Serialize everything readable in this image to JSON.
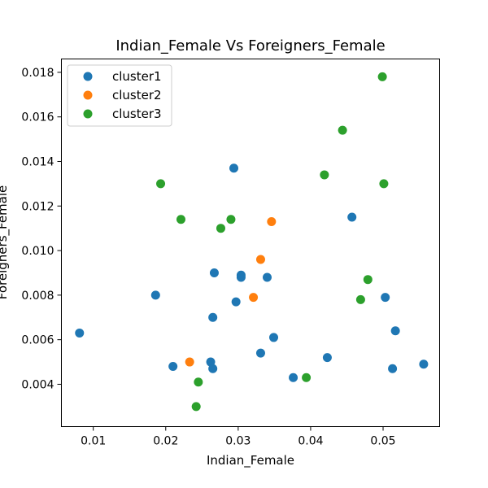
{
  "chart_data": {
    "type": "scatter",
    "title": "Indian_Female Vs Foreigners_Female",
    "xlabel": "Indian_Female",
    "ylabel": "Foreigners_Female",
    "xlim": [
      0.0056,
      0.0578
    ],
    "ylim": [
      0.0021,
      0.0186
    ],
    "x_ticks": [
      0.01,
      0.02,
      0.03,
      0.04,
      0.05
    ],
    "x_tick_labels": [
      "0.01",
      "0.02",
      "0.03",
      "0.04",
      "0.05"
    ],
    "y_ticks": [
      0.004,
      0.006,
      0.008,
      0.01,
      0.012,
      0.014,
      0.016,
      0.018
    ],
    "y_tick_labels": [
      "0.004",
      "0.006",
      "0.008",
      "0.010",
      "0.012",
      "0.014",
      "0.016",
      "0.018"
    ],
    "grid": false,
    "legend_position": "top-left",
    "series": [
      {
        "name": "cluster1",
        "color": "#1f77b4",
        "points": [
          [
            0.0081,
            0.0063
          ],
          [
            0.0186,
            0.008
          ],
          [
            0.021,
            0.0048
          ],
          [
            0.0262,
            0.005
          ],
          [
            0.0265,
            0.0047
          ],
          [
            0.0265,
            0.007
          ],
          [
            0.0267,
            0.009
          ],
          [
            0.0294,
            0.0137
          ],
          [
            0.0297,
            0.0077
          ],
          [
            0.0304,
            0.0089
          ],
          [
            0.0304,
            0.0088
          ],
          [
            0.0331,
            0.0054
          ],
          [
            0.034,
            0.0088
          ],
          [
            0.0349,
            0.0061
          ],
          [
            0.0376,
            0.0043
          ],
          [
            0.0423,
            0.0052
          ],
          [
            0.0457,
            0.0115
          ],
          [
            0.0503,
            0.0079
          ],
          [
            0.0513,
            0.0047
          ],
          [
            0.0517,
            0.0064
          ],
          [
            0.0556,
            0.0049
          ]
        ]
      },
      {
        "name": "cluster2",
        "color": "#ff7f0e",
        "points": [
          [
            0.0233,
            0.005
          ],
          [
            0.0321,
            0.0079
          ],
          [
            0.0331,
            0.0096
          ],
          [
            0.0346,
            0.0113
          ]
        ]
      },
      {
        "name": "cluster3",
        "color": "#2ca02c",
        "points": [
          [
            0.0193,
            0.013
          ],
          [
            0.0221,
            0.0114
          ],
          [
            0.0242,
            0.003
          ],
          [
            0.0245,
            0.0041
          ],
          [
            0.0276,
            0.011
          ],
          [
            0.029,
            0.0114
          ],
          [
            0.0394,
            0.0043
          ],
          [
            0.0419,
            0.0134
          ],
          [
            0.0444,
            0.0154
          ],
          [
            0.0469,
            0.0078
          ],
          [
            0.0479,
            0.0087
          ],
          [
            0.0499,
            0.0178
          ],
          [
            0.0501,
            0.013
          ]
        ]
      }
    ]
  }
}
